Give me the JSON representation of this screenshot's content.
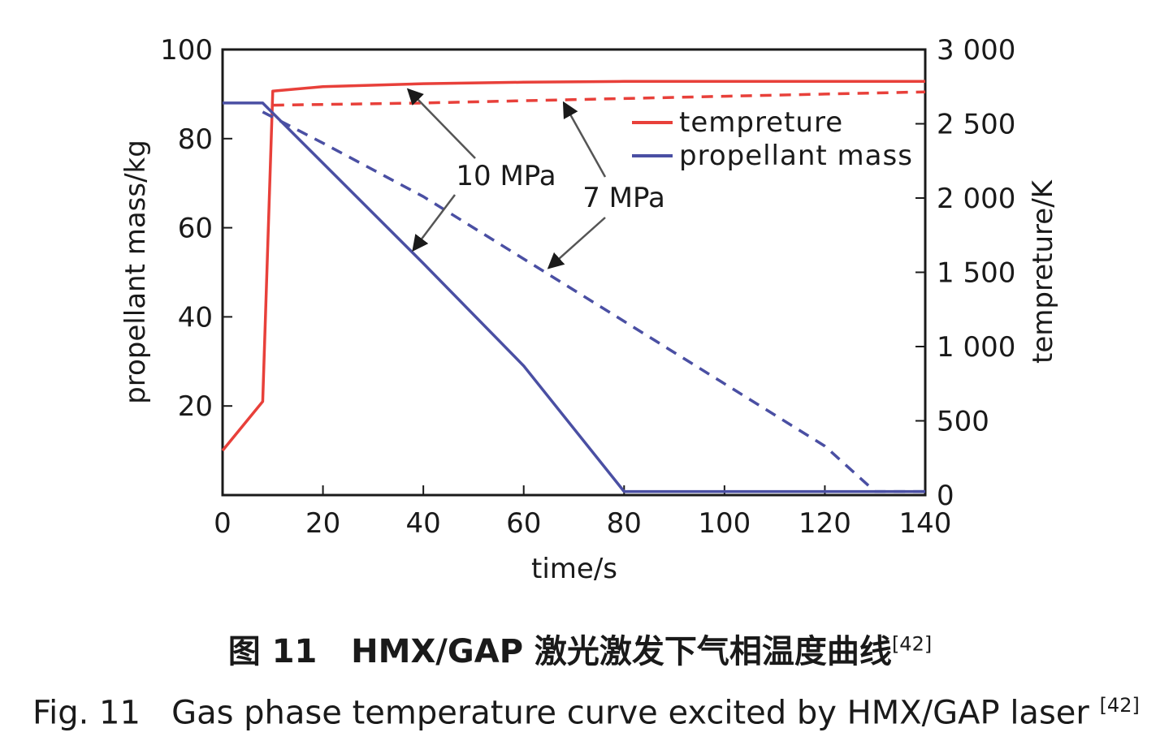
{
  "chart_data": {
    "type": "line",
    "xlabel": "time/s",
    "ylabel_left": "propellant mass/kg",
    "ylabel_right": "tempreture/K",
    "xlim": [
      0,
      140
    ],
    "ylim_left": [
      0,
      100
    ],
    "ylim_right": [
      0,
      3000
    ],
    "x_ticks": [
      "0",
      "20",
      "40",
      "60",
      "80",
      "100",
      "120",
      "140"
    ],
    "y_left_ticks": [
      "20",
      "40",
      "60",
      "80",
      "100"
    ],
    "y_right_ticks": [
      "0",
      "500",
      "1 000",
      "1 500",
      "2 000",
      "2 500",
      "3 000"
    ],
    "grid": false,
    "legend_position": "top-right",
    "legend": [
      {
        "label": "tempreture",
        "color": "#e8403a"
      },
      {
        "label": "propellant mass",
        "color": "#4a4fa3"
      }
    ],
    "series": [
      {
        "quantity": "temperature",
        "pressure": "10 MPa",
        "axis": "right",
        "style": "solid",
        "color": "#e8403a",
        "x": [
          0,
          8,
          10,
          20,
          40,
          60,
          80,
          100,
          120,
          140
        ],
        "y": [
          300,
          630,
          2720,
          2750,
          2770,
          2780,
          2785,
          2785,
          2785,
          2785
        ]
      },
      {
        "quantity": "temperature",
        "pressure": "7 MPa",
        "axis": "right",
        "style": "dashed",
        "color": "#e8403a",
        "x": [
          10,
          20,
          40,
          60,
          80,
          100,
          120,
          140
        ],
        "y": [
          2625,
          2630,
          2640,
          2655,
          2670,
          2685,
          2700,
          2715
        ]
      },
      {
        "quantity": "propellant mass",
        "pressure": "10 MPa",
        "axis": "left",
        "style": "solid",
        "color": "#4a4fa3",
        "x": [
          0,
          8,
          40,
          60,
          80,
          100,
          120,
          140
        ],
        "y": [
          88,
          88,
          52,
          29,
          0.8,
          0.8,
          0.8,
          0.8
        ]
      },
      {
        "quantity": "propellant mass",
        "pressure": "7 MPa",
        "axis": "left",
        "style": "dashed",
        "color": "#4a4fa3",
        "x": [
          8,
          20,
          40,
          60,
          80,
          100,
          120,
          130,
          140
        ],
        "y": [
          86,
          79,
          67,
          53,
          39,
          25,
          11,
          0.8,
          0.8
        ]
      }
    ],
    "annotations": [
      {
        "text": "10 MPa",
        "arrow_targets": [
          {
            "x": 37,
            "y_right": 2730
          },
          {
            "x": 38,
            "y_left": 55
          }
        ]
      },
      {
        "text": "7 MPa",
        "arrow_targets": [
          {
            "x": 68,
            "y_right": 2640
          },
          {
            "x": 65,
            "y_left": 51
          }
        ]
      }
    ]
  },
  "caption": {
    "cn_prefix": "图 11",
    "cn_title": "HMX/GAP 激光激发下气相温度曲线",
    "cn_ref": "[42]",
    "en_prefix": "Fig. 11",
    "en_title": "Gas phase temperature curve excited by HMX/GAP laser",
    "en_ref": "[42]"
  }
}
